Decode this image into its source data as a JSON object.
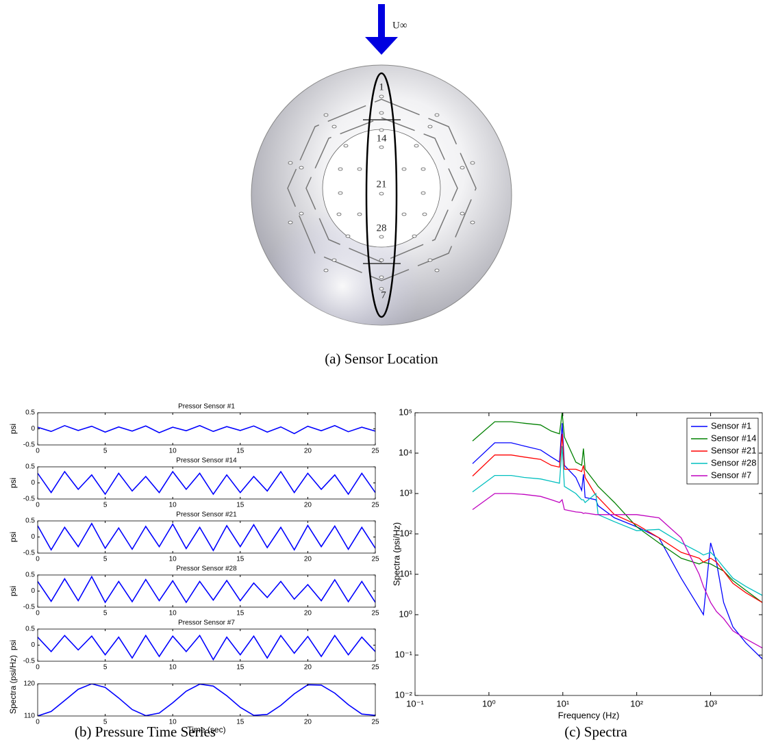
{
  "diagram": {
    "flow_label": "U∞",
    "sensor_labels": [
      "1",
      "14",
      "21",
      "28",
      "7"
    ],
    "caption": "(a) Sensor Location"
  },
  "captions": {
    "time_series": "(b) Pressure Time Series",
    "spectra": "(c) Spectra"
  },
  "chart_data": [
    {
      "type": "line",
      "title": "Pressor Sensor #1",
      "ylabel": "psi",
      "color": "#0000ff",
      "x": [
        0,
        1,
        2,
        3,
        4,
        5,
        6,
        7,
        8,
        9,
        10,
        11,
        12,
        13,
        14,
        15,
        16,
        17,
        18,
        19,
        20,
        21,
        22,
        23,
        24,
        25
      ],
      "values": [
        0.05,
        -0.08,
        0.1,
        -0.05,
        0.08,
        -0.1,
        0.06,
        -0.07,
        0.09,
        -0.12,
        0.05,
        -0.06,
        0.1,
        -0.08,
        0.07,
        -0.05,
        0.09,
        -0.1,
        0.06,
        -0.15,
        0.08,
        -0.06,
        0.1,
        -0.09,
        0.05,
        -0.07
      ],
      "xlim": [
        0,
        25
      ],
      "xticks": [
        0,
        5,
        10,
        15,
        20,
        25
      ],
      "ylim": [
        -0.5,
        0.5
      ],
      "yticks": [
        -0.5,
        0,
        0.5
      ]
    },
    {
      "type": "line",
      "title": "Pressor Sensor #14",
      "ylabel": "psi",
      "color": "#0000ff",
      "x": [
        0,
        1,
        2,
        3,
        4,
        5,
        6,
        7,
        8,
        9,
        10,
        11,
        12,
        13,
        14,
        15,
        16,
        17,
        18,
        19,
        20,
        21,
        22,
        23,
        24,
        25
      ],
      "values": [
        0.3,
        -0.3,
        0.35,
        -0.2,
        0.25,
        -0.35,
        0.3,
        -0.25,
        0.2,
        -0.3,
        0.35,
        -0.2,
        0.3,
        -0.35,
        0.25,
        -0.3,
        0.2,
        -0.25,
        0.35,
        -0.3,
        0.3,
        -0.2,
        0.25,
        -0.35,
        0.3,
        -0.3
      ],
      "xlim": [
        0,
        25
      ],
      "xticks": [
        0,
        5,
        10,
        15,
        20,
        25
      ],
      "ylim": [
        -0.5,
        0.5
      ],
      "yticks": [
        -0.5,
        0,
        0.5
      ]
    },
    {
      "type": "line",
      "title": "Pressor Sensor #21",
      "ylabel": "psi",
      "color": "#0000ff",
      "x": [
        0,
        1,
        2,
        3,
        4,
        5,
        6,
        7,
        8,
        9,
        10,
        11,
        12,
        13,
        14,
        15,
        16,
        17,
        18,
        19,
        20,
        21,
        22,
        23,
        24,
        25
      ],
      "values": [
        0.35,
        -0.4,
        0.3,
        -0.3,
        0.42,
        -0.35,
        0.28,
        -0.38,
        0.33,
        -0.3,
        0.4,
        -0.36,
        0.3,
        -0.42,
        0.35,
        -0.3,
        0.38,
        -0.33,
        0.3,
        -0.4,
        0.36,
        -0.3,
        0.34,
        -0.38,
        0.3,
        -0.35
      ],
      "xlim": [
        0,
        25
      ],
      "xticks": [
        0,
        5,
        10,
        15,
        20,
        25
      ],
      "ylim": [
        -0.5,
        0.5
      ],
      "yticks": [
        -0.5,
        0,
        0.5
      ]
    },
    {
      "type": "line",
      "title": "Pressor Sensor #28",
      "ylabel": "psi",
      "color": "#0000ff",
      "x": [
        0,
        1,
        2,
        3,
        4,
        5,
        6,
        7,
        8,
        9,
        10,
        11,
        12,
        13,
        14,
        15,
        16,
        17,
        18,
        19,
        20,
        21,
        22,
        23,
        24,
        25
      ],
      "values": [
        0.3,
        -0.32,
        0.38,
        -0.3,
        0.45,
        -0.35,
        0.3,
        -0.33,
        0.36,
        -0.3,
        0.32,
        -0.35,
        0.3,
        -0.28,
        0.33,
        -0.3,
        0.25,
        -0.2,
        0.3,
        -0.25,
        0.2,
        -0.3,
        0.35,
        -0.33,
        0.3,
        -0.35
      ],
      "xlim": [
        0,
        25
      ],
      "xticks": [
        0,
        5,
        10,
        15,
        20,
        25
      ],
      "ylim": [
        -0.5,
        0.5
      ],
      "yticks": [
        -0.5,
        0,
        0.5
      ]
    },
    {
      "type": "line",
      "title": "Pressor Sensor #7",
      "ylabel": "psi",
      "color": "#0000ff",
      "x": [
        0,
        1,
        2,
        3,
        4,
        5,
        6,
        7,
        8,
        9,
        10,
        11,
        12,
        13,
        14,
        15,
        16,
        17,
        18,
        19,
        20,
        21,
        22,
        23,
        24,
        25
      ],
      "values": [
        0.25,
        -0.2,
        0.3,
        -0.15,
        0.28,
        -0.3,
        0.25,
        -0.4,
        0.3,
        -0.35,
        0.28,
        -0.2,
        0.3,
        -0.45,
        0.25,
        -0.3,
        0.28,
        -0.4,
        0.3,
        -0.25,
        0.27,
        -0.35,
        0.3,
        -0.3,
        0.25,
        -0.2
      ],
      "xlim": [
        0,
        25
      ],
      "xticks": [
        0,
        5,
        10,
        15,
        20,
        25
      ],
      "ylim": [
        -0.5,
        0.5
      ],
      "yticks": [
        -0.5,
        0,
        0.5
      ]
    },
    {
      "type": "line",
      "ylabel": "Spectra (psi/Hz)",
      "xlabel": "Time (sec)",
      "color": "#0000ff",
      "x": [
        0,
        1,
        2,
        3,
        4,
        5,
        6,
        7,
        8,
        9,
        10,
        11,
        12,
        13,
        14,
        15,
        16,
        17,
        18,
        19,
        20,
        21,
        22,
        23,
        24,
        25
      ],
      "values": [
        110,
        111.4,
        114.8,
        118.3,
        120,
        118.9,
        115.6,
        112,
        110.1,
        110.9,
        114.1,
        117.7,
        119.9,
        119.3,
        116.3,
        112.7,
        110.2,
        110.5,
        113.3,
        116.9,
        119.7,
        119.6,
        117.1,
        113.5,
        110.6,
        110.2
      ],
      "xlim": [
        0,
        25
      ],
      "xticks": [
        0,
        5,
        10,
        15,
        20,
        25
      ],
      "ylim": [
        110,
        120
      ],
      "yticks": [
        110,
        120
      ]
    },
    {
      "type": "line",
      "xscale": "log",
      "yscale": "log",
      "xlabel": "Frequency (Hz)",
      "ylabel": "Spectra (psi/Hz)",
      "legend": "upper right",
      "x": [
        0.6,
        1.2,
        2,
        3,
        5,
        7,
        9,
        9.8,
        10.5,
        15,
        18,
        19,
        20,
        28,
        30,
        50,
        100,
        200,
        400,
        700,
        800,
        1000,
        1200,
        1500,
        2000,
        3000,
        5000
      ],
      "series": [
        {
          "name": "Sensor #1",
          "color": "#0000ff",
          "values": [
            5500,
            18000,
            18000,
            15000,
            12000,
            8000,
            6000,
            55000,
            5000,
            2500,
            1200,
            3000,
            800,
            700,
            500,
            250,
            150,
            80,
            8,
            1.5,
            1.0,
            60,
            20,
            2,
            0.5,
            0.2,
            0.08
          ]
        },
        {
          "name": "Sensor #14",
          "color": "#008000",
          "values": [
            20000,
            60000,
            60000,
            55000,
            50000,
            35000,
            30000,
            100000,
            25000,
            6000,
            5000,
            13000,
            4000,
            1800,
            1500,
            600,
            150,
            60,
            25,
            18,
            20,
            18,
            15,
            12,
            7,
            4,
            2
          ]
        },
        {
          "name": "Sensor #21",
          "color": "#ff0000",
          "values": [
            2700,
            9000,
            9000,
            8000,
            7000,
            5000,
            4500,
            30000,
            4000,
            4000,
            3500,
            5000,
            2500,
            900,
            800,
            300,
            170,
            80,
            35,
            25,
            20,
            25,
            20,
            12,
            6,
            3.5,
            2
          ]
        },
        {
          "name": "Sensor #28",
          "color": "#00bfbf",
          "values": [
            1100,
            2800,
            2800,
            2500,
            2300,
            2000,
            1800,
            15000,
            1500,
            1000,
            700,
            700,
            600,
            1000,
            300,
            200,
            120,
            130,
            60,
            35,
            30,
            35,
            25,
            15,
            8,
            5,
            3
          ]
        },
        {
          "name": "Sensor #7",
          "color": "#bf00bf",
          "values": [
            400,
            1000,
            1000,
            950,
            850,
            700,
            600,
            700,
            400,
            350,
            340,
            320,
            330,
            300,
            300,
            300,
            300,
            250,
            80,
            10,
            5,
            2,
            1.2,
            0.8,
            0.4,
            0.25,
            0.15
          ]
        }
      ],
      "xlim": [
        0.1,
        5000
      ],
      "ylim": [
        0.01,
        100000
      ],
      "xticks": [
        {
          "value": 0.1,
          "label": "10⁻¹"
        },
        {
          "value": 1,
          "label": "10⁰"
        },
        {
          "value": 10,
          "label": "10¹"
        },
        {
          "value": 100,
          "label": "10²"
        },
        {
          "value": 1000,
          "label": "10³"
        }
      ],
      "yticks": [
        {
          "value": 0.01,
          "label": "10⁻²"
        },
        {
          "value": 0.1,
          "label": "10⁻¹"
        },
        {
          "value": 1,
          "label": "10⁰"
        },
        {
          "value": 10,
          "label": "10¹"
        },
        {
          "value": 100,
          "label": "10²"
        },
        {
          "value": 1000,
          "label": "10³"
        },
        {
          "value": 10000,
          "label": "10⁴"
        },
        {
          "value": 100000,
          "label": "10⁵"
        }
      ]
    }
  ]
}
